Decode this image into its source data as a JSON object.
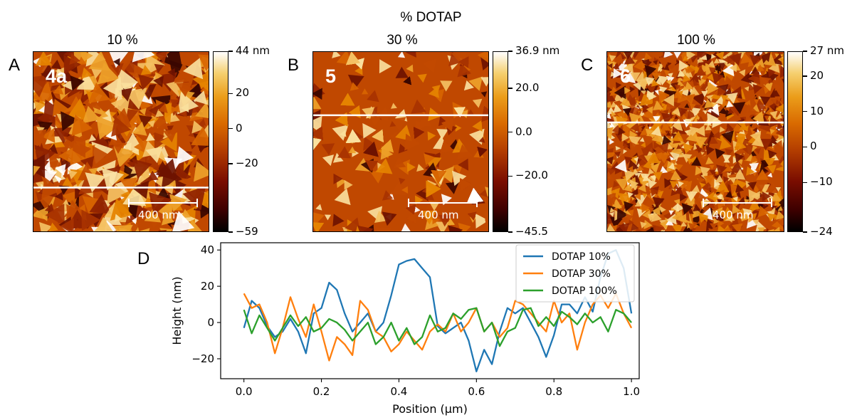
{
  "figure": {
    "suptitle": "% DOTAP"
  },
  "panels": [
    {
      "letter": "A",
      "title": "10 %",
      "sample": "4a",
      "scale_bar": "400 nm",
      "colorbar_ticks": [
        "44 nm",
        "20",
        "0",
        "−20",
        "−59"
      ],
      "colorbar_values": [
        44,
        20,
        0,
        -20,
        -59
      ],
      "colorbar_range": [
        -59,
        44
      ],
      "line_fraction": 0.75
    },
    {
      "letter": "B",
      "title": "30 %",
      "sample": "5",
      "scale_bar": "400 nm",
      "colorbar_ticks": [
        "36.9 nm",
        "20.0",
        "0.0",
        "−20.0",
        "−45.5"
      ],
      "colorbar_values": [
        36.9,
        20.0,
        0.0,
        -20.0,
        -45.5
      ],
      "colorbar_range": [
        -45.5,
        36.9
      ],
      "line_fraction": 0.35
    },
    {
      "letter": "C",
      "title": "100 %",
      "sample": "6",
      "scale_bar": "400 nm",
      "colorbar_ticks": [
        "27 nm",
        "20",
        "10",
        "0",
        "−10",
        "−24"
      ],
      "colorbar_values": [
        27,
        20,
        10,
        0,
        -10,
        -24
      ],
      "colorbar_range": [
        -24,
        27
      ],
      "line_fraction": 0.39
    }
  ],
  "chart_data": {
    "type": "line",
    "letter": "D",
    "xlabel": "Position (μm)",
    "ylabel": "Height (nm)",
    "xlim": [
      -0.06,
      1.02
    ],
    "ylim": [
      -31,
      44
    ],
    "xticks": [
      0.0,
      0.2,
      0.4,
      0.6,
      0.8,
      1.0
    ],
    "xtick_labels": [
      "0.0",
      "0.2",
      "0.4",
      "0.6",
      "0.8",
      "1.0"
    ],
    "yticks": [
      -20,
      0,
      20,
      40
    ],
    "ytick_labels": [
      "−20",
      "0",
      "20",
      "40"
    ],
    "legend_position": "top-right",
    "series": [
      {
        "name": "DOTAP 10%",
        "color": "#1f77b4",
        "x": [
          0.0,
          0.02,
          0.04,
          0.06,
          0.08,
          0.1,
          0.12,
          0.14,
          0.16,
          0.18,
          0.2,
          0.22,
          0.24,
          0.26,
          0.28,
          0.3,
          0.32,
          0.34,
          0.36,
          0.38,
          0.4,
          0.42,
          0.44,
          0.46,
          0.48,
          0.5,
          0.52,
          0.54,
          0.56,
          0.58,
          0.6,
          0.62,
          0.64,
          0.66,
          0.68,
          0.7,
          0.72,
          0.74,
          0.76,
          0.78,
          0.8,
          0.82,
          0.84,
          0.86,
          0.88,
          0.9,
          0.92,
          0.94,
          0.96,
          0.98,
          1.0
        ],
        "y": [
          -3,
          12,
          8,
          -2,
          -8,
          -5,
          2,
          -5,
          -17,
          5,
          8,
          22,
          18,
          5,
          -5,
          0,
          5,
          -5,
          0,
          15,
          32,
          34,
          35,
          30,
          25,
          -2,
          -6,
          -3,
          0,
          -10,
          -27,
          -15,
          -23,
          -5,
          8,
          5,
          8,
          0,
          -8,
          -19,
          -7,
          10,
          10,
          5,
          14,
          6,
          25,
          38,
          40,
          30,
          5
        ]
      },
      {
        "name": "DOTAP 30%",
        "color": "#ff7f0e",
        "x": [
          0.0,
          0.02,
          0.04,
          0.06,
          0.08,
          0.1,
          0.12,
          0.14,
          0.16,
          0.18,
          0.2,
          0.22,
          0.24,
          0.26,
          0.28,
          0.3,
          0.32,
          0.34,
          0.36,
          0.38,
          0.4,
          0.42,
          0.44,
          0.46,
          0.48,
          0.5,
          0.52,
          0.54,
          0.56,
          0.58,
          0.6,
          0.62,
          0.64,
          0.66,
          0.68,
          0.7,
          0.72,
          0.74,
          0.76,
          0.78,
          0.8,
          0.82,
          0.84,
          0.86,
          0.88,
          0.9,
          0.92,
          0.94,
          0.96,
          0.98,
          1.0
        ],
        "y": [
          16,
          8,
          10,
          0,
          -17,
          -3,
          14,
          2,
          -8,
          10,
          -5,
          -21,
          -8,
          -12,
          -18,
          12,
          7,
          -5,
          -8,
          -16,
          -12,
          -5,
          -10,
          -15,
          -5,
          -1,
          -5,
          5,
          -5,
          0,
          8,
          -5,
          0,
          -8,
          -3,
          12,
          10,
          5,
          0,
          -5,
          12,
          0,
          5,
          -15,
          0,
          10,
          15,
          8,
          16,
          5,
          -3
        ]
      },
      {
        "name": "DOTAP 100%",
        "color": "#2ca02c",
        "x": [
          0.0,
          0.02,
          0.04,
          0.06,
          0.08,
          0.1,
          0.12,
          0.14,
          0.16,
          0.18,
          0.2,
          0.22,
          0.24,
          0.26,
          0.28,
          0.3,
          0.32,
          0.34,
          0.36,
          0.38,
          0.4,
          0.42,
          0.44,
          0.46,
          0.48,
          0.5,
          0.52,
          0.54,
          0.56,
          0.58,
          0.6,
          0.62,
          0.64,
          0.66,
          0.68,
          0.7,
          0.72,
          0.74,
          0.76,
          0.78,
          0.8,
          0.82,
          0.84,
          0.86,
          0.88,
          0.9,
          0.92,
          0.94,
          0.96,
          0.98,
          1.0
        ],
        "y": [
          7,
          -6,
          4,
          -3,
          -10,
          -3,
          4,
          -2,
          3,
          -5,
          -3,
          2,
          0,
          -4,
          -10,
          -5,
          0,
          -12,
          -8,
          0,
          -10,
          -3,
          -12,
          -8,
          4,
          -5,
          -3,
          5,
          2,
          7,
          8,
          -5,
          0,
          -13,
          -5,
          -3,
          7,
          8,
          -2,
          3,
          -2,
          6,
          3,
          -1,
          5,
          0,
          3,
          -5,
          7,
          5,
          0
        ]
      }
    ]
  }
}
